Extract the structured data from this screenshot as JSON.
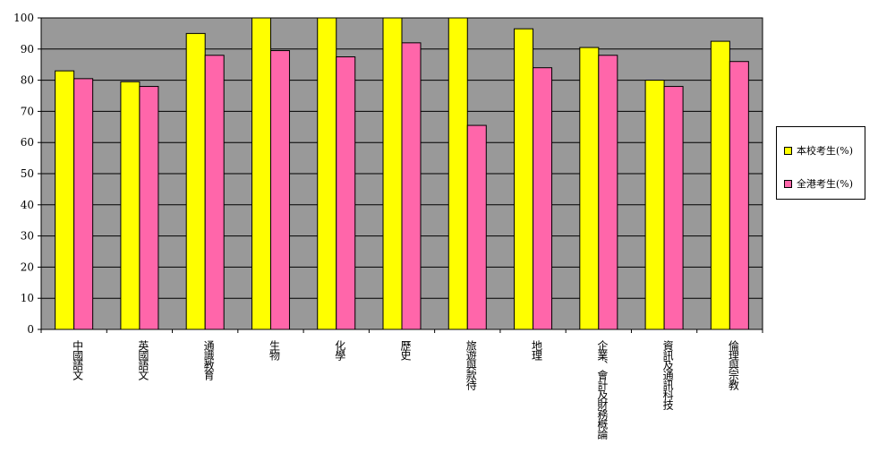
{
  "chart_data": {
    "type": "bar",
    "categories": [
      "中國語文",
      "英國語文",
      "通識教育",
      "生物",
      "化學",
      "歷史",
      "旅遊與款待",
      "地理",
      "企業、會計及財務概論",
      "資訊及通訊科技",
      "倫理與宗教"
    ],
    "series": [
      {
        "name": "本校考生(%)",
        "color": "#ffff00",
        "values": [
          83,
          79.5,
          95,
          100,
          100,
          100,
          100,
          96.5,
          90.5,
          80,
          92.5
        ]
      },
      {
        "name": "全港考生(%)",
        "color": "#ff66aa",
        "values": [
          80.5,
          78,
          88,
          89.5,
          87.5,
          92,
          65.5,
          84,
          88,
          78,
          86
        ]
      }
    ],
    "y_ticks": [
      "0",
      "10",
      "20",
      "30",
      "40",
      "50",
      "60",
      "70",
      "80",
      "90",
      "100"
    ],
    "ylim": [
      0,
      100
    ],
    "grid": true,
    "legend_position": "right",
    "plot_background": "#999999"
  }
}
